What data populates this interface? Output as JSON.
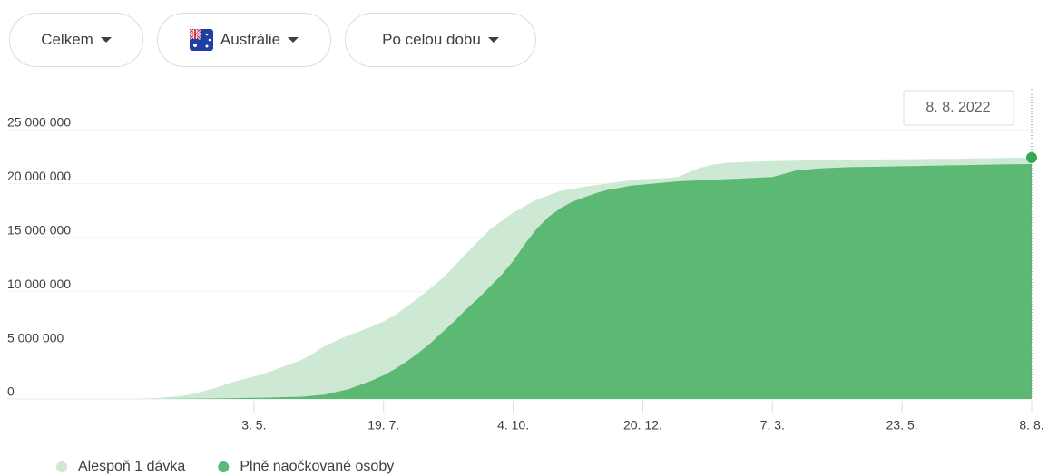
{
  "controls": [
    {
      "label": "Celkem"
    },
    {
      "label": "Austrálie"
    },
    {
      "label": "Po celou dobu"
    }
  ],
  "chart_data": {
    "type": "area",
    "tooltip": "8. 8. 2022",
    "categories": [
      null,
      null,
      null,
      null,
      null,
      null,
      null,
      null,
      null,
      null,
      "3. 5.",
      null,
      null,
      null,
      null,
      null,
      null,
      null,
      null,
      null,
      null,
      "19. 7.",
      null,
      null,
      null,
      null,
      null,
      null,
      null,
      null,
      null,
      null,
      "4. 10.",
      null,
      null,
      null,
      null,
      null,
      null,
      null,
      null,
      null,
      null,
      "20. 12.",
      null,
      null,
      null,
      null,
      null,
      null,
      null,
      null,
      null,
      null,
      "7. 3.",
      null,
      null,
      null,
      null,
      null,
      null,
      null,
      null,
      null,
      null,
      "23. 5.",
      null,
      null,
      null,
      null,
      null,
      null,
      null,
      null,
      null,
      null,
      "8. 8."
    ],
    "series": [
      {
        "name": "Alespoň 1 dávka",
        "color": "#cde8d3",
        "values": [
          0,
          50000,
          100000,
          200000,
          300000,
          500000,
          800000,
          1100000,
          1500000,
          1800000,
          2100000,
          2400000,
          2800000,
          3200000,
          3600000,
          4200000,
          4900000,
          5400000,
          5900000,
          6300000,
          6700000,
          7200000,
          7800000,
          8600000,
          9400000,
          10300000,
          11200000,
          12300000,
          13500000,
          14600000,
          15700000,
          16500000,
          17300000,
          17900000,
          18500000,
          18900000,
          19300000,
          19500000,
          19700000,
          19850000,
          20000000,
          20150000,
          20300000,
          20400000,
          20450000,
          20500000,
          20600000,
          21100000,
          21500000,
          21750000,
          21900000,
          21950000,
          22000000,
          22050000,
          22080000,
          22100000,
          22120000,
          22140000,
          22160000,
          22180000,
          22200000,
          22210000,
          22220000,
          22230000,
          22240000,
          22250000,
          22260000,
          22270000,
          22280000,
          22290000,
          22300000,
          22320000,
          22340000,
          22360000,
          22370000,
          22390000,
          22400000
        ]
      },
      {
        "name": "Plně naočkované osoby",
        "color": "#5bb974",
        "values": [
          0,
          0,
          0,
          10000,
          20000,
          30000,
          40000,
          50000,
          70000,
          90000,
          100000,
          120000,
          150000,
          180000,
          200000,
          300000,
          400000,
          650000,
          900000,
          1300000,
          1700000,
          2200000,
          2800000,
          3500000,
          4300000,
          5200000,
          6200000,
          7200000,
          8300000,
          9300000,
          10400000,
          11500000,
          12800000,
          14400000,
          15800000,
          16900000,
          17700000,
          18300000,
          18700000,
          19100000,
          19400000,
          19600000,
          19800000,
          19900000,
          20000000,
          20100000,
          20200000,
          20250000,
          20300000,
          20350000,
          20400000,
          20450000,
          20500000,
          20550000,
          20600000,
          20900000,
          21200000,
          21300000,
          21400000,
          21450000,
          21500000,
          21520000,
          21540000,
          21560000,
          21580000,
          21600000,
          21620000,
          21640000,
          21660000,
          21680000,
          21700000,
          21720000,
          21740000,
          21760000,
          21780000,
          21790000,
          21800000
        ]
      }
    ],
    "ylim": [
      0,
      25000000
    ],
    "yticks": [
      0,
      {
        "value": 5000000,
        "label": "5 000 000"
      },
      {
        "value": 10000000,
        "label": "10 000 000"
      },
      {
        "value": 15000000,
        "label": "15 000 000"
      },
      {
        "value": 20000000,
        "label": "20 000 000"
      },
      {
        "value": 25000000,
        "label": "25 000 000"
      }
    ],
    "grid": true,
    "legend": "bottom-left",
    "point_color": "#34a853"
  }
}
